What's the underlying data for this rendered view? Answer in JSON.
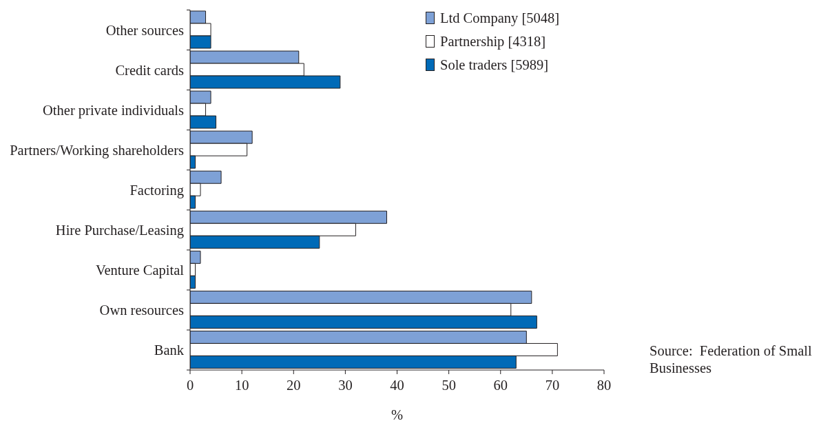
{
  "chart_data": {
    "type": "bar",
    "orientation": "horizontal",
    "xlabel": "%",
    "categories": [
      "Other sources",
      "Credit cards",
      "Other private individuals",
      "Partners/Working shareholders",
      "Factoring",
      "Hire Purchase/Leasing",
      "Venture Capital",
      "Own resources",
      "Bank"
    ],
    "series": [
      {
        "name": "Ltd Company [5048]",
        "color": "#7ea1d6",
        "values": [
          3,
          21,
          4,
          12,
          6,
          38,
          2,
          66,
          65
        ]
      },
      {
        "name": "Partnership [4318]",
        "color": "#ffffff",
        "values": [
          4,
          22,
          3,
          11,
          2,
          32,
          1,
          62,
          71
        ]
      },
      {
        "name": "Sole traders [5989]",
        "color": "#006ab7",
        "values": [
          4,
          29,
          5,
          1,
          1,
          25,
          1,
          67,
          63
        ]
      }
    ],
    "xlim": [
      0,
      80
    ],
    "xticks": [
      0,
      10,
      20,
      30,
      40,
      50,
      60,
      70,
      80
    ],
    "legend": "top right",
    "annotations": [
      "Source:  Federation of Small Businesses"
    ]
  }
}
